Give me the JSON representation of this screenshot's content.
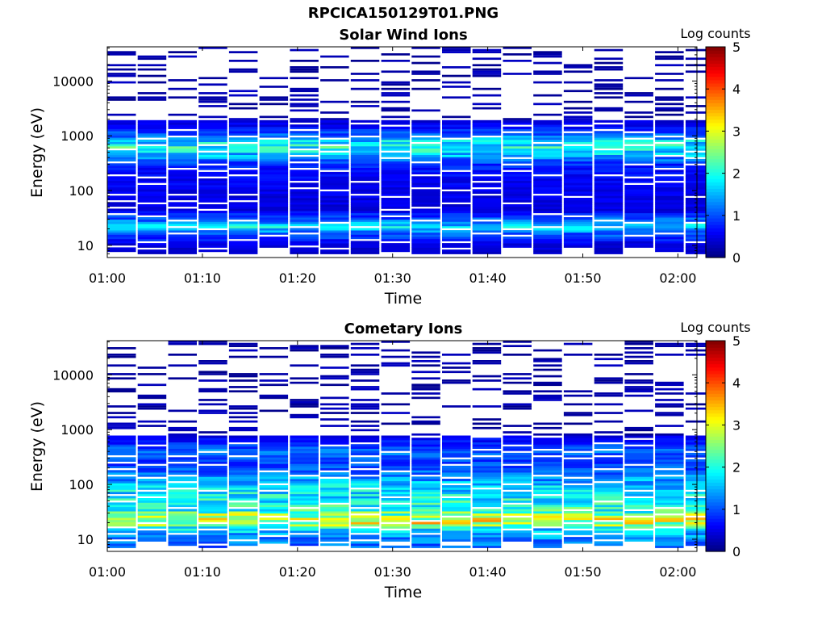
{
  "figure_title": "RPCICA150129T01.PNG",
  "colorbar": {
    "label": "Log counts",
    "ticks": [
      "0",
      "1",
      "2",
      "3",
      "4",
      "5"
    ],
    "range": [
      0,
      5
    ],
    "colormap": "jet"
  },
  "chart_data": [
    {
      "type": "heatmap",
      "title": "Solar Wind Ions",
      "xlabel": "Time",
      "ylabel": "Energy (eV)",
      "x_ticks": [
        "01:00",
        "01:10",
        "01:20",
        "01:30",
        "01:40",
        "01:50",
        "02:00"
      ],
      "y_ticks": [
        "10",
        "100",
        "1000",
        "10000"
      ],
      "y_scale": "log",
      "y_range": [
        6,
        42000
      ],
      "x_range": [
        "01:00",
        "02:02"
      ],
      "time_steps": 20,
      "time_step_seconds": 192,
      "energy_profile": [
        {
          "e": 7,
          "v": 0.35
        },
        {
          "e": 11,
          "v": 0.5
        },
        {
          "e": 17,
          "v": 1.15
        },
        {
          "e": 22,
          "v": 1.75
        },
        {
          "e": 30,
          "v": 1.1
        },
        {
          "e": 45,
          "v": 0.45
        },
        {
          "e": 70,
          "v": 0.5
        },
        {
          "e": 110,
          "v": 0.55
        },
        {
          "e": 180,
          "v": 0.6
        },
        {
          "e": 300,
          "v": 0.8
        },
        {
          "e": 420,
          "v": 1.4
        },
        {
          "e": 600,
          "v": 2.0
        },
        {
          "e": 850,
          "v": 1.6
        },
        {
          "e": 1100,
          "v": 1.0
        },
        {
          "e": 1600,
          "v": 0.55
        },
        {
          "e": 2500,
          "v": 0.25
        },
        {
          "e": 5000,
          "v": 0.1
        },
        {
          "e": 40000,
          "v": 0.05
        }
      ],
      "fill_threshold_energy": 2000
    },
    {
      "type": "heatmap",
      "title": "Cometary Ions",
      "xlabel": "Time",
      "ylabel": "Energy (eV)",
      "x_ticks": [
        "01:00",
        "01:10",
        "01:20",
        "01:30",
        "01:40",
        "01:50",
        "02:00"
      ],
      "y_ticks": [
        "10",
        "100",
        "1000",
        "10000"
      ],
      "y_scale": "log",
      "y_range": [
        6,
        42000
      ],
      "x_range": [
        "01:00",
        "02:02"
      ],
      "time_steps": 20,
      "time_step_seconds": 192,
      "energy_profile": [
        {
          "e": 7,
          "v": 1.1
        },
        {
          "e": 11,
          "v": 1.3
        },
        {
          "e": 15,
          "v": 1.7
        },
        {
          "e": 20,
          "v": 2.9
        },
        {
          "e": 26,
          "v": 2.7
        },
        {
          "e": 35,
          "v": 2.0
        },
        {
          "e": 50,
          "v": 1.9
        },
        {
          "e": 70,
          "v": 1.8
        },
        {
          "e": 100,
          "v": 1.6
        },
        {
          "e": 150,
          "v": 1.2
        },
        {
          "e": 250,
          "v": 0.9
        },
        {
          "e": 400,
          "v": 1.2
        },
        {
          "e": 550,
          "v": 0.8
        },
        {
          "e": 800,
          "v": 0.45
        },
        {
          "e": 1200,
          "v": 0.3
        },
        {
          "e": 2000,
          "v": 0.2
        },
        {
          "e": 5000,
          "v": 0.1
        },
        {
          "e": 40000,
          "v": 0.05
        }
      ],
      "fill_threshold_energy": 800
    }
  ]
}
